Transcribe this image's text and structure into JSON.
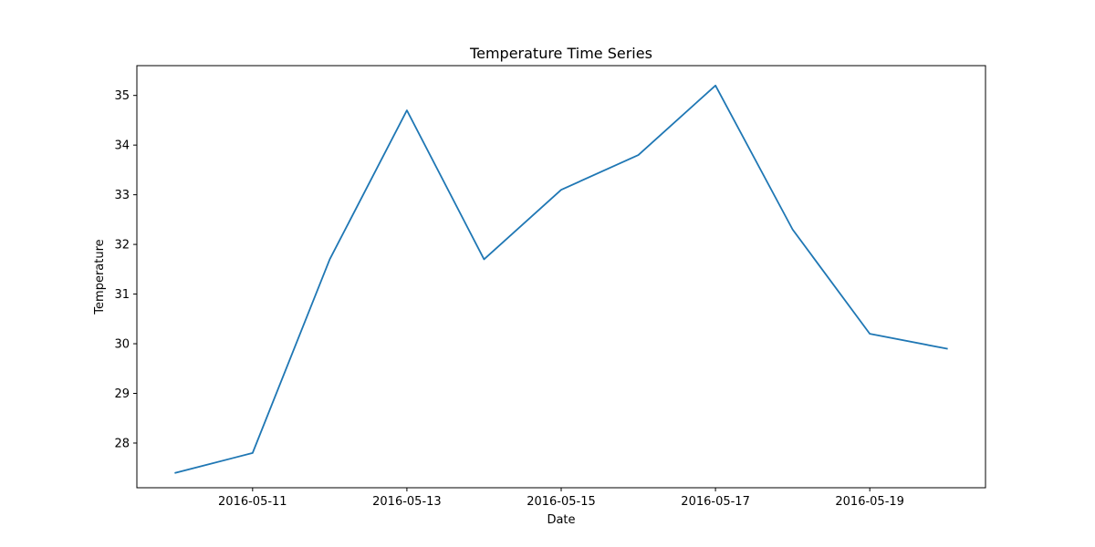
{
  "chart_data": {
    "type": "line",
    "title": "Temperature Time Series",
    "xlabel": "Date",
    "ylabel": "Temperature",
    "x": [
      "2016-05-10",
      "2016-05-11",
      "2016-05-12",
      "2016-05-13",
      "2016-05-14",
      "2016-05-15",
      "2016-05-16",
      "2016-05-17",
      "2016-05-18",
      "2016-05-19",
      "2016-05-20"
    ],
    "series": [
      {
        "values": [
          27.4,
          27.8,
          31.7,
          34.7,
          31.7,
          33.1,
          33.8,
          35.2,
          32.3,
          30.2,
          29.9
        ],
        "color": "#1f77b4"
      }
    ],
    "xlim": [
      "2016-05-09 12:00",
      "2016-05-20 12:00"
    ],
    "ylim": [
      27.1,
      35.6
    ],
    "xticks": [
      "2016-05-11",
      "2016-05-13",
      "2016-05-15",
      "2016-05-17",
      "2016-05-19"
    ],
    "yticks": [
      28,
      29,
      30,
      31,
      32,
      33,
      34,
      35
    ],
    "grid": false,
    "legend": false
  }
}
